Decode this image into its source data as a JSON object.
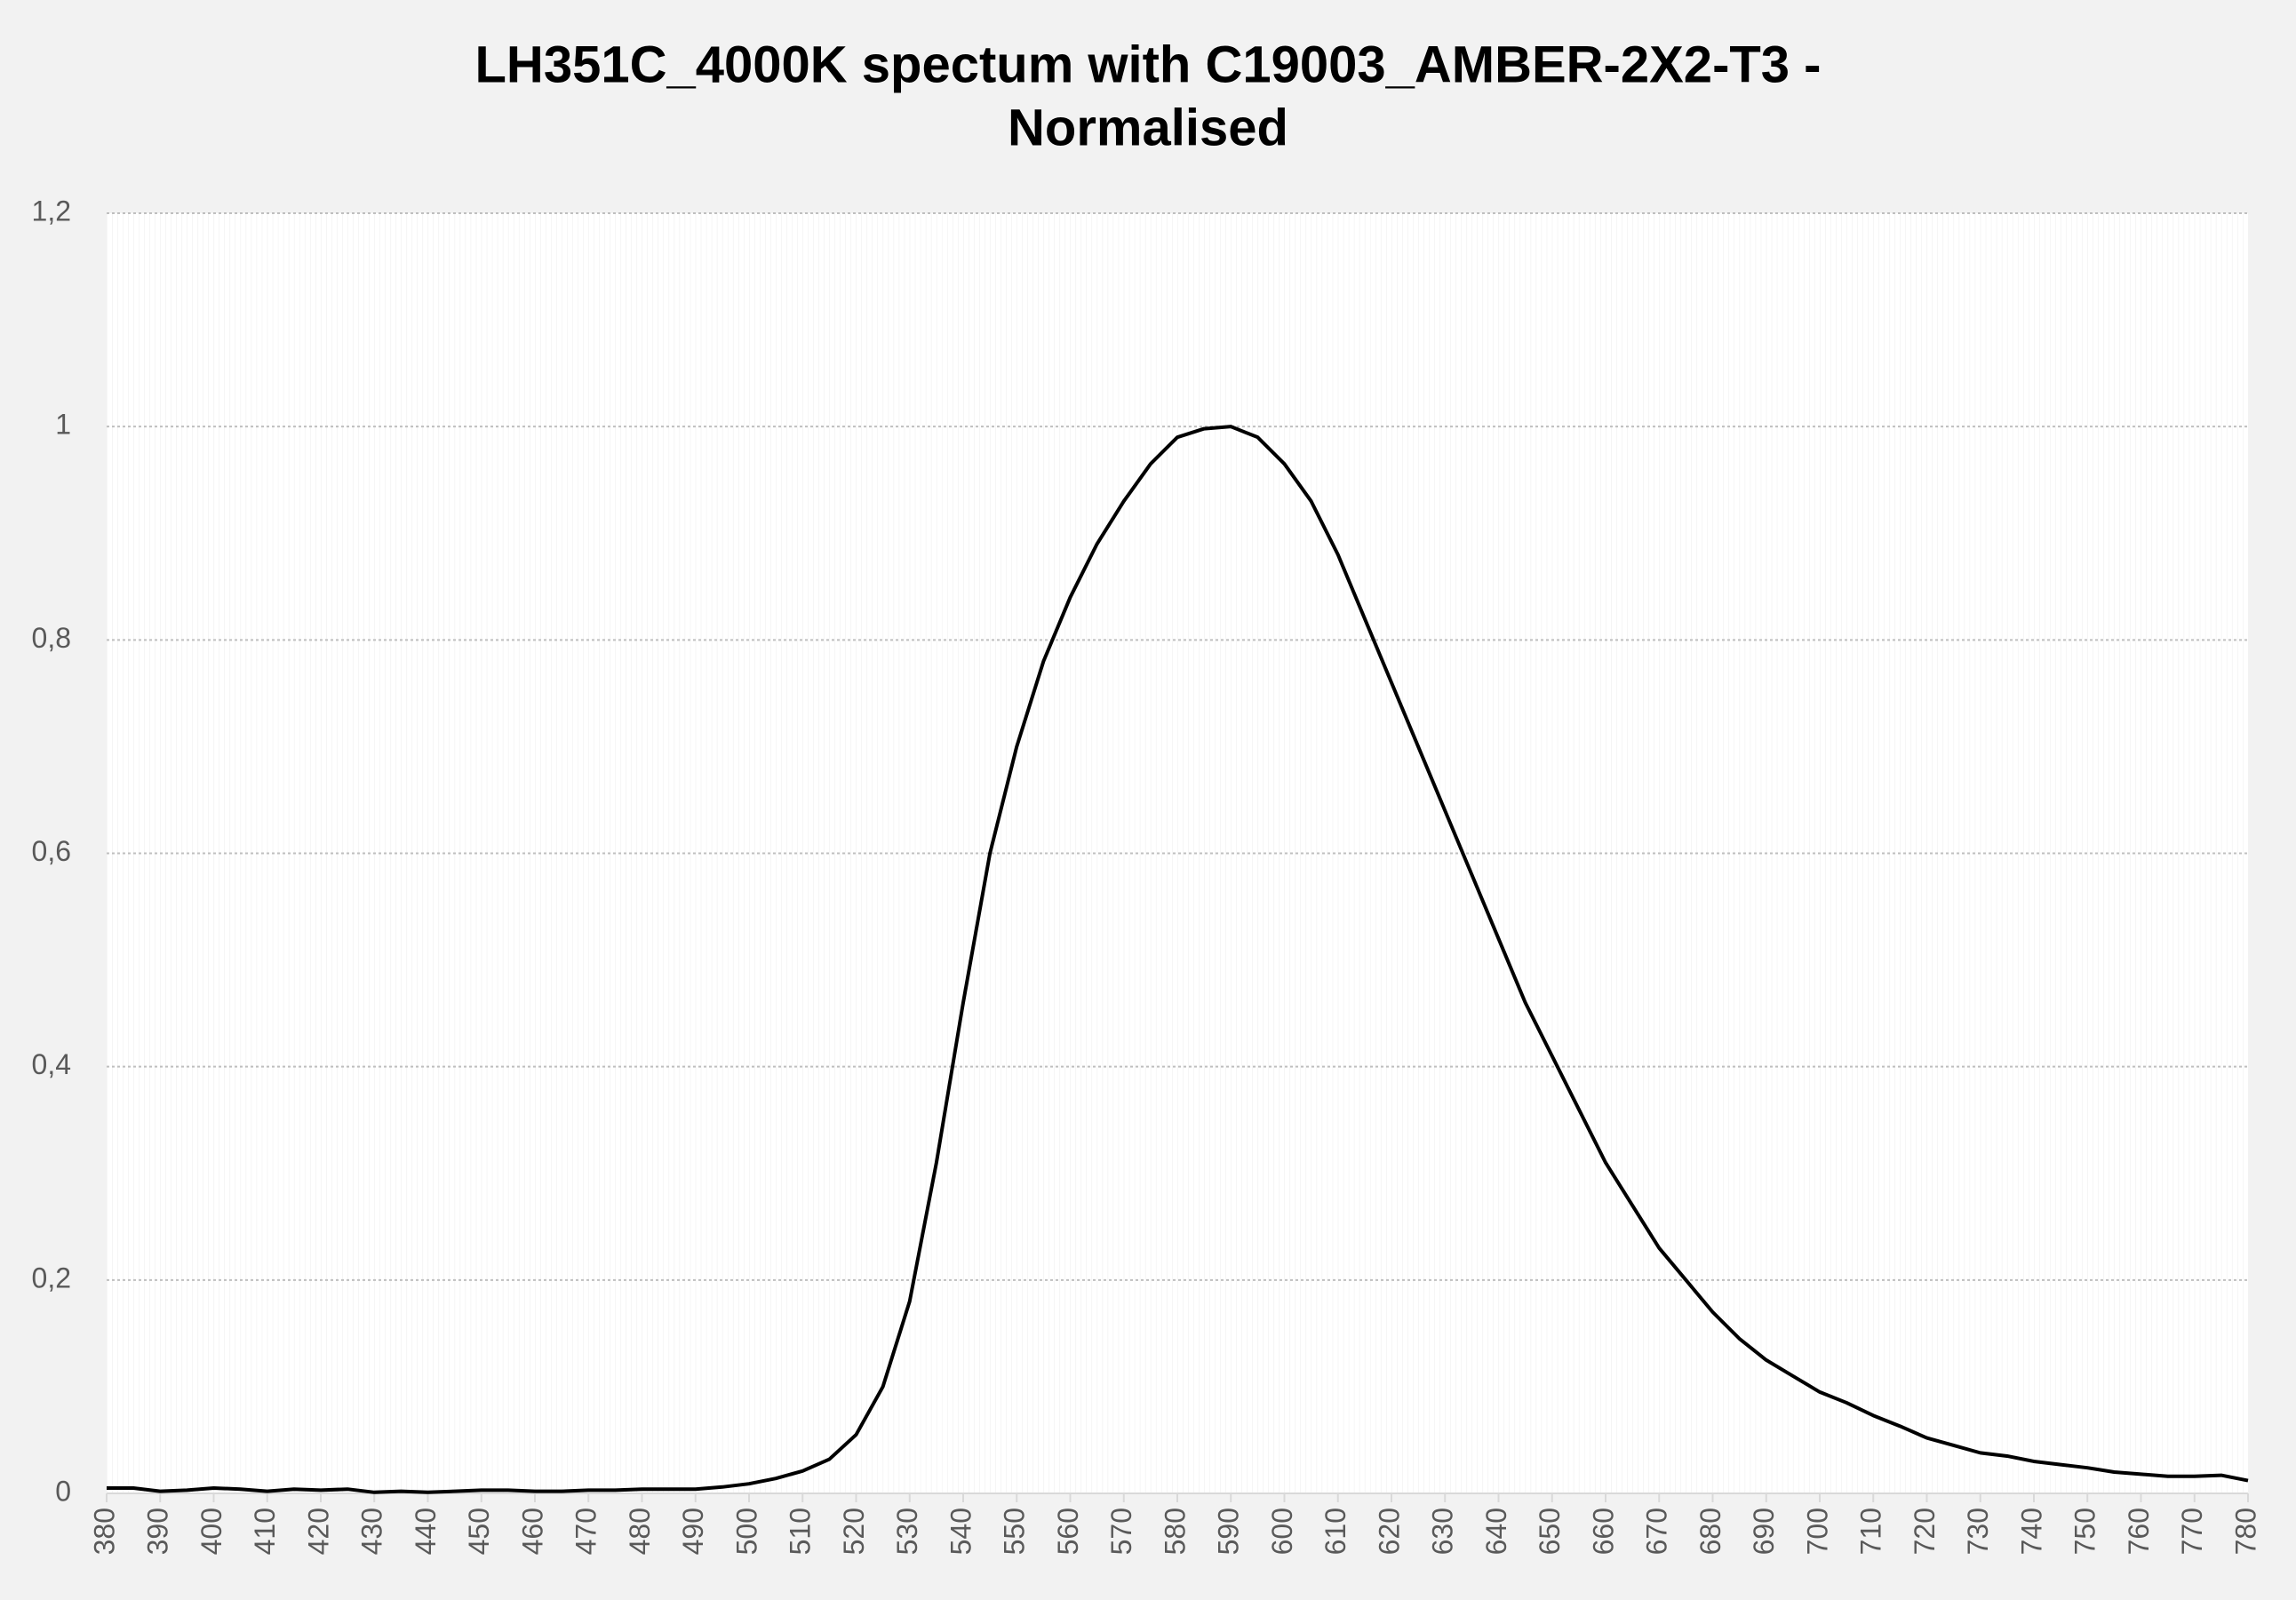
{
  "chart_data": {
    "type": "line",
    "title": [
      "LH351C_4000K spectum with C19003_AMBER-2X2-T3 -",
      "Normalised"
    ],
    "x": [
      380,
      385,
      390,
      395,
      400,
      405,
      410,
      415,
      420,
      425,
      430,
      435,
      440,
      445,
      450,
      455,
      460,
      465,
      470,
      475,
      480,
      485,
      490,
      495,
      500,
      505,
      510,
      515,
      520,
      525,
      530,
      535,
      540,
      545,
      550,
      555,
      560,
      565,
      570,
      575,
      580,
      585,
      590,
      595,
      600,
      605,
      610,
      615,
      620,
      625,
      630,
      635,
      640,
      645,
      650,
      655,
      660,
      665,
      670,
      675,
      680,
      685,
      690,
      695,
      700,
      705,
      710,
      715,
      720,
      725,
      730,
      735,
      740,
      745,
      750,
      755,
      760,
      765,
      770,
      775,
      780
    ],
    "series": [
      {
        "name": "Normalised",
        "color": "#000000",
        "values": [
          0.005,
          0.005,
          0.002,
          0.003,
          0.005,
          0.004,
          0.002,
          0.004,
          0.003,
          0.004,
          0.001,
          0.002,
          0.001,
          0.002,
          0.003,
          0.003,
          0.002,
          0.002,
          0.003,
          0.003,
          0.004,
          0.004,
          0.004,
          0.006,
          0.009,
          0.014,
          0.021,
          0.032,
          0.055,
          0.1,
          0.18,
          0.31,
          0.46,
          0.6,
          0.7,
          0.78,
          0.84,
          0.89,
          0.93,
          0.965,
          0.99,
          0.998,
          1.0,
          0.99,
          0.965,
          0.93,
          0.88,
          0.82,
          0.76,
          0.7,
          0.64,
          0.58,
          0.52,
          0.46,
          0.41,
          0.36,
          0.31,
          0.27,
          0.23,
          0.2,
          0.17,
          0.145,
          0.125,
          0.11,
          0.095,
          0.085,
          0.073,
          0.063,
          0.052,
          0.045,
          0.038,
          0.035,
          0.03,
          0.027,
          0.024,
          0.02,
          0.018,
          0.016,
          0.016,
          0.017,
          0.012
        ]
      }
    ],
    "xlim": [
      380,
      780
    ],
    "xticks": [
      380,
      390,
      400,
      410,
      420,
      430,
      440,
      450,
      460,
      470,
      480,
      490,
      500,
      510,
      520,
      530,
      540,
      550,
      560,
      570,
      580,
      590,
      600,
      610,
      620,
      630,
      640,
      650,
      660,
      670,
      680,
      690,
      700,
      710,
      720,
      730,
      740,
      750,
      760,
      770,
      780
    ],
    "ylim": [
      0,
      1.2
    ],
    "yticks": [
      0,
      {
        "value": 0.2,
        "label": "0,2"
      },
      {
        "value": 0.4,
        "label": "0,4"
      },
      {
        "value": 0.6,
        "label": "0,6"
      },
      {
        "value": 0.8,
        "label": "0,8"
      },
      1,
      {
        "value": 1.2,
        "label": "1,2"
      }
    ],
    "grid": true
  }
}
